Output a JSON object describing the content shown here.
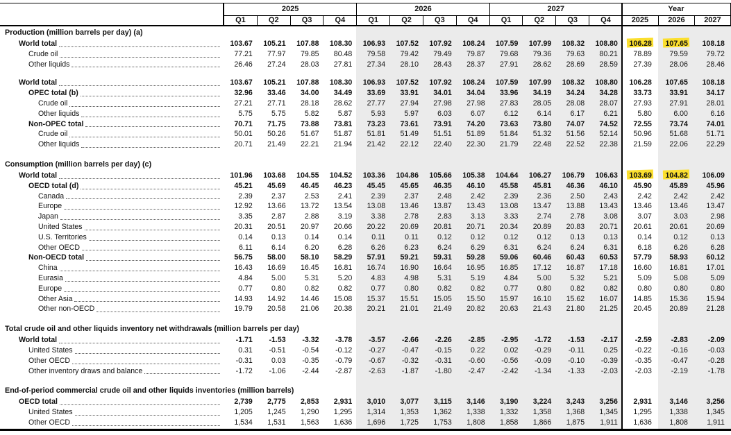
{
  "table": {
    "kind": "forecast-data-table",
    "band_color": "#ebebeb",
    "highlight_color": "#fbdf2e",
    "column_groups": [
      {
        "label": "2025",
        "cols": [
          "Q1",
          "Q2",
          "Q3",
          "Q4"
        ]
      },
      {
        "label": "2026",
        "cols": [
          "Q1",
          "Q2",
          "Q3",
          "Q4"
        ]
      },
      {
        "label": "2027",
        "cols": [
          "Q1",
          "Q2",
          "Q3",
          "Q4"
        ]
      },
      {
        "label": "Year",
        "cols": [
          "2025",
          "2026",
          "2027"
        ]
      }
    ],
    "sections": [
      {
        "title": "Production (million barrels per day) (a)",
        "rows": [
          {
            "label": "World total",
            "indent": 1,
            "bold": true,
            "highlight": [
              12,
              13
            ],
            "values": [
              "103.67",
              "105.21",
              "107.88",
              "108.30",
              "106.93",
              "107.52",
              "107.92",
              "108.24",
              "107.59",
              "107.99",
              "108.32",
              "108.80",
              "106.28",
              "107.65",
              "108.18"
            ]
          },
          {
            "label": "Crude oil",
            "indent": 2,
            "bold": false,
            "values": [
              "77.21",
              "77.97",
              "79.85",
              "80.48",
              "79.58",
              "79.42",
              "79.49",
              "79.87",
              "79.68",
              "79.36",
              "79.63",
              "80.21",
              "78.89",
              "79.59",
              "79.72"
            ]
          },
          {
            "label": "Other liquids",
            "indent": 2,
            "bold": false,
            "values": [
              "26.46",
              "27.24",
              "28.03",
              "27.81",
              "27.34",
              "28.10",
              "28.43",
              "28.37",
              "27.91",
              "28.62",
              "28.69",
              "28.59",
              "27.39",
              "28.06",
              "28.46"
            ]
          },
          {
            "label": "World total",
            "indent": 1,
            "bold": true,
            "gap_before": true,
            "values": [
              "103.67",
              "105.21",
              "107.88",
              "108.30",
              "106.93",
              "107.52",
              "107.92",
              "108.24",
              "107.59",
              "107.99",
              "108.32",
              "108.80",
              "106.28",
              "107.65",
              "108.18"
            ]
          },
          {
            "label": "OPEC total (b)",
            "indent": 2,
            "bold": true,
            "values": [
              "32.96",
              "33.46",
              "34.00",
              "34.49",
              "33.69",
              "33.91",
              "34.01",
              "34.04",
              "33.96",
              "34.19",
              "34.24",
              "34.28",
              "33.73",
              "33.91",
              "34.17"
            ]
          },
          {
            "label": "Crude oil",
            "indent": 3,
            "bold": false,
            "values": [
              "27.21",
              "27.71",
              "28.18",
              "28.62",
              "27.77",
              "27.94",
              "27.98",
              "27.98",
              "27.83",
              "28.05",
              "28.08",
              "28.07",
              "27.93",
              "27.91",
              "28.01"
            ]
          },
          {
            "label": "Other liquids",
            "indent": 3,
            "bold": false,
            "values": [
              "5.75",
              "5.75",
              "5.82",
              "5.87",
              "5.93",
              "5.97",
              "6.03",
              "6.07",
              "6.12",
              "6.14",
              "6.17",
              "6.21",
              "5.80",
              "6.00",
              "6.16"
            ]
          },
          {
            "label": "Non-OPEC total",
            "indent": 2,
            "bold": true,
            "values": [
              "70.71",
              "71.75",
              "73.88",
              "73.81",
              "73.23",
              "73.61",
              "73.91",
              "74.20",
              "73.63",
              "73.80",
              "74.07",
              "74.52",
              "72.55",
              "73.74",
              "74.01"
            ]
          },
          {
            "label": "Crude oil",
            "indent": 3,
            "bold": false,
            "values": [
              "50.01",
              "50.26",
              "51.67",
              "51.87",
              "51.81",
              "51.49",
              "51.51",
              "51.89",
              "51.84",
              "51.32",
              "51.56",
              "52.14",
              "50.96",
              "51.68",
              "51.71"
            ]
          },
          {
            "label": "Other liquids",
            "indent": 3,
            "bold": false,
            "values": [
              "20.71",
              "21.49",
              "22.21",
              "21.94",
              "21.42",
              "22.12",
              "22.40",
              "22.30",
              "21.79",
              "22.48",
              "22.52",
              "22.38",
              "21.59",
              "22.06",
              "22.29"
            ]
          }
        ]
      },
      {
        "title": "Consumption (million barrels per day) (c)",
        "rows": [
          {
            "label": "World total",
            "indent": 1,
            "bold": true,
            "highlight": [
              12,
              13
            ],
            "values": [
              "101.96",
              "103.68",
              "104.55",
              "104.52",
              "103.36",
              "104.86",
              "105.66",
              "105.38",
              "104.64",
              "106.27",
              "106.79",
              "106.63",
              "103.69",
              "104.82",
              "106.09"
            ]
          },
          {
            "label": "OECD total (d)",
            "indent": 2,
            "bold": true,
            "values": [
              "45.21",
              "45.69",
              "46.45",
              "46.23",
              "45.45",
              "45.65",
              "46.35",
              "46.10",
              "45.58",
              "45.81",
              "46.36",
              "46.10",
              "45.90",
              "45.89",
              "45.96"
            ]
          },
          {
            "label": "Canada",
            "indent": 3,
            "bold": false,
            "values": [
              "2.39",
              "2.37",
              "2.53",
              "2.41",
              "2.39",
              "2.37",
              "2.48",
              "2.42",
              "2.39",
              "2.36",
              "2.50",
              "2.43",
              "2.42",
              "2.42",
              "2.42"
            ]
          },
          {
            "label": "Europe",
            "indent": 3,
            "bold": false,
            "values": [
              "12.92",
              "13.66",
              "13.72",
              "13.54",
              "13.08",
              "13.46",
              "13.87",
              "13.43",
              "13.08",
              "13.47",
              "13.88",
              "13.43",
              "13.46",
              "13.46",
              "13.47"
            ]
          },
          {
            "label": "Japan",
            "indent": 3,
            "bold": false,
            "values": [
              "3.35",
              "2.87",
              "2.88",
              "3.19",
              "3.38",
              "2.78",
              "2.83",
              "3.13",
              "3.33",
              "2.74",
              "2.78",
              "3.08",
              "3.07",
              "3.03",
              "2.98"
            ]
          },
          {
            "label": "United States",
            "indent": 3,
            "bold": false,
            "values": [
              "20.31",
              "20.51",
              "20.97",
              "20.66",
              "20.22",
              "20.69",
              "20.81",
              "20.71",
              "20.34",
              "20.89",
              "20.83",
              "20.71",
              "20.61",
              "20.61",
              "20.69"
            ]
          },
          {
            "label": "U.S. Territories",
            "indent": 3,
            "bold": false,
            "values": [
              "0.14",
              "0.13",
              "0.14",
              "0.14",
              "0.11",
              "0.11",
              "0.12",
              "0.12",
              "0.12",
              "0.12",
              "0.13",
              "0.13",
              "0.14",
              "0.12",
              "0.13"
            ]
          },
          {
            "label": "Other OECD",
            "indent": 3,
            "bold": false,
            "values": [
              "6.11",
              "6.14",
              "6.20",
              "6.28",
              "6.26",
              "6.23",
              "6.24",
              "6.29",
              "6.31",
              "6.24",
              "6.24",
              "6.31",
              "6.18",
              "6.26",
              "6.28"
            ]
          },
          {
            "label": "Non-OECD total",
            "indent": 2,
            "bold": true,
            "values": [
              "56.75",
              "58.00",
              "58.10",
              "58.29",
              "57.91",
              "59.21",
              "59.31",
              "59.28",
              "59.06",
              "60.46",
              "60.43",
              "60.53",
              "57.79",
              "58.93",
              "60.12"
            ]
          },
          {
            "label": "China",
            "indent": 3,
            "bold": false,
            "values": [
              "16.43",
              "16.69",
              "16.45",
              "16.81",
              "16.74",
              "16.90",
              "16.64",
              "16.95",
              "16.85",
              "17.12",
              "16.87",
              "17.18",
              "16.60",
              "16.81",
              "17.01"
            ]
          },
          {
            "label": "Eurasia",
            "indent": 3,
            "bold": false,
            "values": [
              "4.84",
              "5.00",
              "5.31",
              "5.20",
              "4.83",
              "4.98",
              "5.31",
              "5.19",
              "4.84",
              "5.00",
              "5.32",
              "5.21",
              "5.09",
              "5.08",
              "5.09"
            ]
          },
          {
            "label": "Europe",
            "indent": 3,
            "bold": false,
            "values": [
              "0.77",
              "0.80",
              "0.82",
              "0.82",
              "0.77",
              "0.80",
              "0.82",
              "0.82",
              "0.77",
              "0.80",
              "0.82",
              "0.82",
              "0.80",
              "0.80",
              "0.80"
            ]
          },
          {
            "label": "Other Asia",
            "indent": 3,
            "bold": false,
            "values": [
              "14.93",
              "14.92",
              "14.46",
              "15.08",
              "15.37",
              "15.51",
              "15.05",
              "15.50",
              "15.97",
              "16.10",
              "15.62",
              "16.07",
              "14.85",
              "15.36",
              "15.94"
            ]
          },
          {
            "label": "Other non-OECD",
            "indent": 3,
            "bold": false,
            "values": [
              "19.79",
              "20.58",
              "21.06",
              "20.38",
              "20.21",
              "21.01",
              "21.49",
              "20.82",
              "20.63",
              "21.43",
              "21.80",
              "21.25",
              "20.45",
              "20.89",
              "21.28"
            ]
          }
        ]
      },
      {
        "title": "Total crude oil and other liquids inventory net withdrawals (million barrels per day)",
        "rows": [
          {
            "label": "World total",
            "indent": 1,
            "bold": true,
            "values": [
              "-1.71",
              "-1.53",
              "-3.32",
              "-3.78",
              "-3.57",
              "-2.66",
              "-2.26",
              "-2.85",
              "-2.95",
              "-1.72",
              "-1.53",
              "-2.17",
              "-2.59",
              "-2.83",
              "-2.09"
            ]
          },
          {
            "label": "United States",
            "indent": 2,
            "bold": false,
            "values": [
              "0.31",
              "-0.51",
              "-0.54",
              "-0.12",
              "-0.27",
              "-0.47",
              "-0.15",
              "0.22",
              "0.02",
              "-0.29",
              "-0.11",
              "0.25",
              "-0.22",
              "-0.16",
              "-0.03"
            ]
          },
          {
            "label": "Other OECD",
            "indent": 2,
            "bold": false,
            "values": [
              "-0.31",
              "0.03",
              "-0.35",
              "-0.79",
              "-0.67",
              "-0.32",
              "-0.31",
              "-0.60",
              "-0.56",
              "-0.09",
              "-0.10",
              "-0.39",
              "-0.35",
              "-0.47",
              "-0.28"
            ]
          },
          {
            "label": "Other inventory draws and balance",
            "indent": 2,
            "bold": false,
            "values": [
              "-1.72",
              "-1.06",
              "-2.44",
              "-2.87",
              "-2.63",
              "-1.87",
              "-1.80",
              "-2.47",
              "-2.42",
              "-1.34",
              "-1.33",
              "-2.03",
              "-2.03",
              "-2.19",
              "-1.78"
            ]
          }
        ]
      },
      {
        "title": "End-of-period commercial crude oil and other liquids inventories (million barrels)",
        "rows": [
          {
            "label": "OECD total",
            "indent": 1,
            "bold": true,
            "values": [
              "2,739",
              "2,775",
              "2,853",
              "2,931",
              "3,010",
              "3,077",
              "3,115",
              "3,146",
              "3,190",
              "3,224",
              "3,243",
              "3,256",
              "2,931",
              "3,146",
              "3,256"
            ]
          },
          {
            "label": "United States",
            "indent": 2,
            "bold": false,
            "values": [
              "1,205",
              "1,245",
              "1,290",
              "1,295",
              "1,314",
              "1,353",
              "1,362",
              "1,338",
              "1,332",
              "1,358",
              "1,368",
              "1,345",
              "1,295",
              "1,338",
              "1,345"
            ]
          },
          {
            "label": "Other OECD",
            "indent": 2,
            "bold": false,
            "values": [
              "1,534",
              "1,531",
              "1,563",
              "1,636",
              "1,696",
              "1,725",
              "1,753",
              "1,808",
              "1,858",
              "1,866",
              "1,875",
              "1,911",
              "1,636",
              "1,808",
              "1,911"
            ]
          }
        ]
      }
    ]
  }
}
